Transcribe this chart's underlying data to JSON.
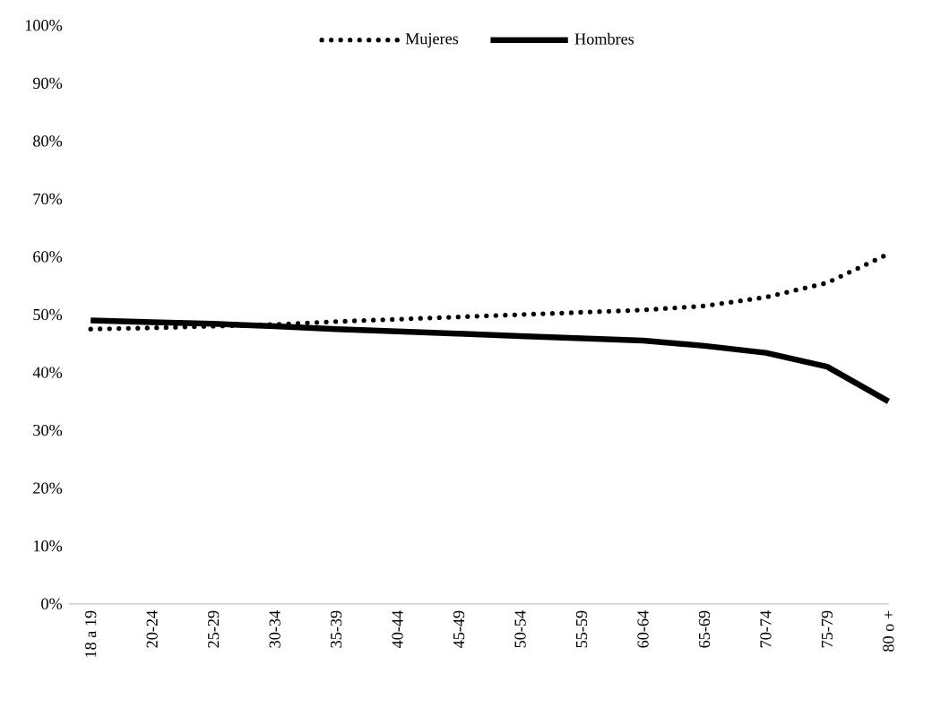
{
  "chart_data": {
    "type": "line",
    "categories": [
      "18 a 19",
      "20-24",
      "25-29",
      "30-34",
      "35-39",
      "40-44",
      "45-49",
      "50-54",
      "55-59",
      "60-64",
      "65-69",
      "70-74",
      "75-79",
      "80 o +"
    ],
    "series": [
      {
        "name": "Mujeres",
        "color": "#000000",
        "line_style": "dotted",
        "values": [
          47.5,
          47.7,
          48,
          48.3,
          48.8,
          49.2,
          49.6,
          50,
          50.4,
          50.8,
          51.5,
          53,
          55.5,
          60.5
        ]
      },
      {
        "name": "Hombres",
        "color": "#000000",
        "line_style": "solid",
        "values": [
          49,
          48.7,
          48.4,
          48,
          47.5,
          47.1,
          46.7,
          46.3,
          45.9,
          45.5,
          44.6,
          43.4,
          41,
          35
        ]
      }
    ],
    "ylim": [
      0,
      100
    ],
    "yticks": [
      {
        "value": 0,
        "label": "0%"
      },
      {
        "value": 10,
        "label": "10%"
      },
      {
        "value": 20,
        "label": "20%"
      },
      {
        "value": 30,
        "label": "30%"
      },
      {
        "value": 40,
        "label": "40%"
      },
      {
        "value": 50,
        "label": "50%"
      },
      {
        "value": 60,
        "label": "60%"
      },
      {
        "value": 70,
        "label": "70%"
      },
      {
        "value": 80,
        "label": "80%"
      },
      {
        "value": 90,
        "label": "90%"
      },
      {
        "value": 100,
        "label": "100%"
      }
    ],
    "grid": false,
    "legend": "top",
    "marker": "none"
  }
}
